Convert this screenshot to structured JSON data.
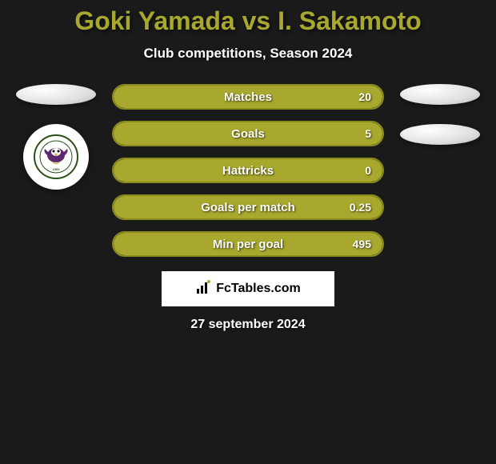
{
  "title_color": "#a8a82e",
  "title": "Goki Yamada vs I. Sakamoto",
  "subtitle": "Club competitions, Season 2024",
  "bar_border_color": "#8a8c1e",
  "bar_fill_color": "#a8a82e",
  "bar_bg_color": "#1a1a1a",
  "stats": [
    {
      "label": "Matches",
      "value": "20",
      "fill_pct": 100
    },
    {
      "label": "Goals",
      "value": "5",
      "fill_pct": 100
    },
    {
      "label": "Hattricks",
      "value": "0",
      "fill_pct": 100
    },
    {
      "label": "Goals per match",
      "value": "0.25",
      "fill_pct": 100
    },
    {
      "label": "Min per goal",
      "value": "495",
      "fill_pct": 100
    }
  ],
  "footer_brand": "FcTables.com",
  "footer_date": "27 september 2024",
  "team_badge": {
    "text_top": "FOOTBALL CLUB",
    "text_bottom": "TOKYO VERDY",
    "year": "1969",
    "outer_ring_color": "#2d5016",
    "bird_color": "#5b2a6e"
  }
}
